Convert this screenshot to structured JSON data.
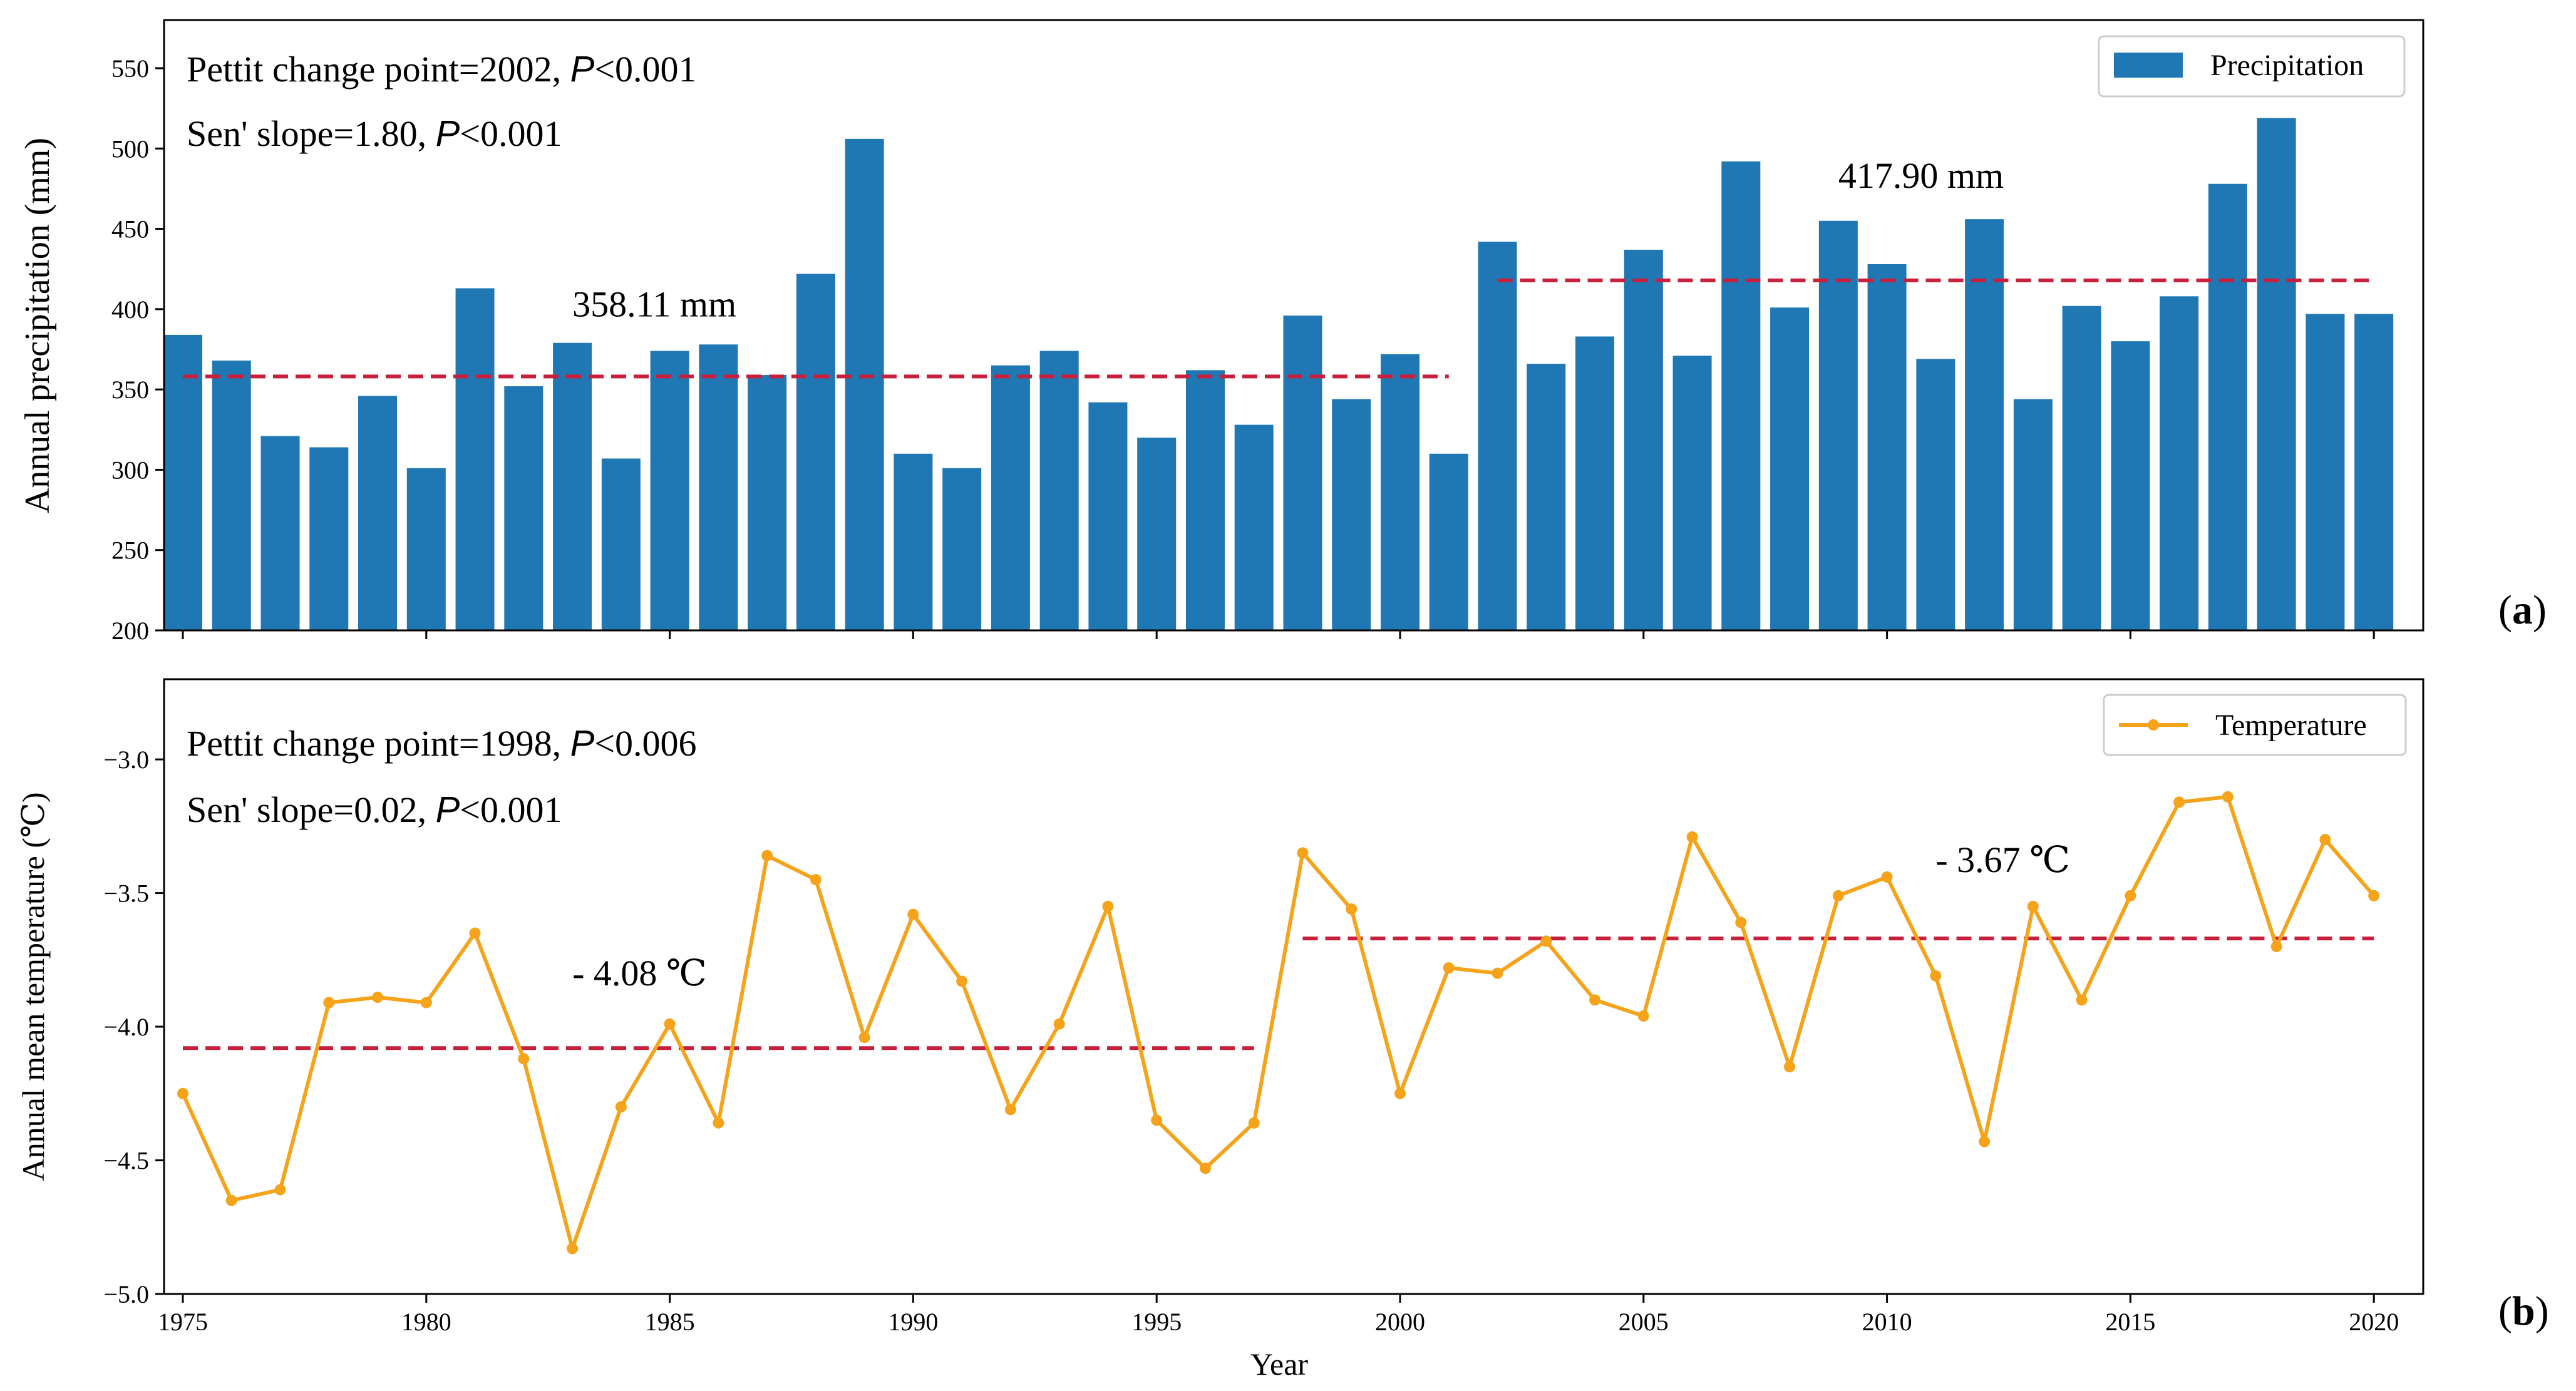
{
  "chart_data": [
    {
      "type": "bar",
      "panel_label_open": "(",
      "panel_label_letter": "a",
      "panel_label_close": ")",
      "ylabel": "Annual precipitation (mm)",
      "xlabel": "",
      "ylim": [
        200,
        580
      ],
      "yticks": [
        200,
        250,
        300,
        350,
        400,
        450,
        500,
        550
      ],
      "xticks": [
        1975,
        1980,
        1985,
        1990,
        1995,
        2000,
        2005,
        2010,
        2015,
        2020
      ],
      "color": "#1f77b4",
      "legend": {
        "label": "Precipitation",
        "position": "top-right"
      },
      "x": [
        1975,
        1976,
        1977,
        1978,
        1979,
        1980,
        1981,
        1982,
        1983,
        1984,
        1985,
        1986,
        1987,
        1988,
        1989,
        1990,
        1991,
        1992,
        1993,
        1994,
        1995,
        1996,
        1997,
        1998,
        1999,
        2000,
        2001,
        2002,
        2003,
        2004,
        2005,
        2006,
        2007,
        2008,
        2009,
        2010,
        2011,
        2012,
        2013,
        2014,
        2015,
        2016,
        2017,
        2018,
        2019,
        2020
      ],
      "values": [
        384,
        368,
        321,
        314,
        346,
        301,
        413,
        352,
        379,
        307,
        374,
        378,
        359,
        422,
        506,
        310,
        301,
        365,
        374,
        342,
        320,
        362,
        328,
        396,
        344,
        372,
        310,
        442,
        366,
        383,
        437,
        371,
        492,
        401,
        455,
        428,
        369,
        456,
        344,
        402,
        380,
        408,
        478,
        519,
        397,
        397
      ],
      "means": [
        {
          "from": 1975,
          "to": 2001,
          "value": 358.11,
          "label": "358.11 mm"
        },
        {
          "from": 2002,
          "to": 2020,
          "value": 417.9,
          "label": "417.90 mm"
        }
      ],
      "annotations": {
        "line1_text": "Pettit change point=2002, ",
        "line1_p": "P",
        "line1_rest": "<0.001",
        "line2_text": "Sen' slope=1.80, ",
        "line2_p": "P",
        "line2_rest": "<0.001"
      },
      "mean_line_color": "#c8203c"
    },
    {
      "type": "line",
      "panel_label_open": "(",
      "panel_label_letter": "b",
      "panel_label_close": ")",
      "ylabel": "Annual mean temperature (℃)",
      "xlabel": "Year",
      "ylim": [
        -5.0,
        -2.7
      ],
      "yticks": [
        -5.0,
        -4.5,
        -4.0,
        -3.5,
        -3.0
      ],
      "ytick_labels": [
        "−5.0",
        "−4.5",
        "−4.0",
        "−3.5",
        "−3.0"
      ],
      "xticks": [
        1975,
        1980,
        1985,
        1990,
        1995,
        2000,
        2005,
        2010,
        2015,
        2020
      ],
      "color": "#f5a31a",
      "legend": {
        "label": "Temperature",
        "position": "top-right"
      },
      "x": [
        1975,
        1976,
        1977,
        1978,
        1979,
        1980,
        1981,
        1982,
        1983,
        1984,
        1985,
        1986,
        1987,
        1988,
        1989,
        1990,
        1991,
        1992,
        1993,
        1994,
        1995,
        1996,
        1997,
        1998,
        1999,
        2000,
        2001,
        2002,
        2003,
        2004,
        2005,
        2006,
        2007,
        2008,
        2009,
        2010,
        2011,
        2012,
        2013,
        2014,
        2015,
        2016,
        2017,
        2018,
        2019,
        2020
      ],
      "values": [
        -4.25,
        -4.65,
        -4.61,
        -3.91,
        -3.89,
        -3.91,
        -3.65,
        -4.12,
        -4.83,
        -4.3,
        -3.99,
        -4.36,
        -3.36,
        -3.45,
        -4.04,
        -3.58,
        -3.83,
        -4.31,
        -3.99,
        -3.55,
        -4.35,
        -4.53,
        -4.36,
        -3.35,
        -3.56,
        -4.25,
        -3.78,
        -3.8,
        -3.68,
        -3.9,
        -3.96,
        -3.29,
        -3.61,
        -4.15,
        -3.51,
        -3.44,
        -3.81,
        -4.43,
        -3.55,
        -3.9,
        -3.51,
        -3.16,
        -3.14,
        -3.7,
        -3.3,
        -3.51
      ],
      "means": [
        {
          "from": 1975,
          "to": 1997,
          "value": -4.08,
          "label": "- 4.08 ℃"
        },
        {
          "from": 1998,
          "to": 2020,
          "value": -3.67,
          "label": "- 3.67 ℃"
        }
      ],
      "annotations": {
        "line1_text": "Pettit change point=1998, ",
        "line1_p": "P",
        "line1_rest": "<0.006",
        "line2_text": "Sen' slope=0.02, ",
        "line2_p": "P",
        "line2_rest": "<0.001"
      },
      "mean_line_color": "#c8203c"
    }
  ]
}
